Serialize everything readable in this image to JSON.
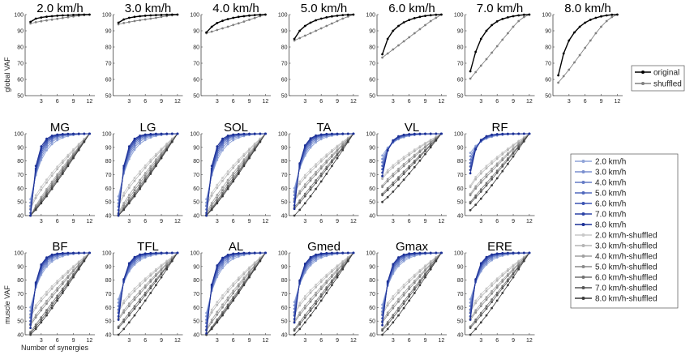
{
  "chart_data": {
    "type": "line",
    "x_ticks": [
      3,
      6,
      9,
      12
    ],
    "x_range": [
      0,
      13
    ],
    "y_range": [
      40,
      100
    ],
    "global_y_ticks": [
      50,
      60,
      70,
      80,
      90,
      100
    ],
    "muscle_y_ticks": [
      40,
      50,
      60,
      70,
      80,
      90,
      100
    ],
    "x": [
      1,
      2,
      3,
      4,
      5,
      6,
      7,
      8,
      9,
      10,
      11,
      12
    ],
    "global_ylabel": "global VAF",
    "muscle_ylabel": "muscle VAF",
    "xlabel": "Number of synergies",
    "global_legend": [
      {
        "label": "original",
        "color": "#000000"
      },
      {
        "label": "shuffled",
        "color": "#808080"
      }
    ],
    "speed_legend": [
      {
        "label": "2.0 km/h",
        "color": "#8fa3d8"
      },
      {
        "label": "3.0 km/h",
        "color": "#7a8fcf"
      },
      {
        "label": "4.0 km/h",
        "color": "#657bc6"
      },
      {
        "label": "5.0 km/h",
        "color": "#5068bd"
      },
      {
        "label": "6.0 km/h",
        "color": "#3c54b3"
      },
      {
        "label": "7.0 km/h",
        "color": "#2b42a6"
      },
      {
        "label": "8.0 km/h",
        "color": "#1c3096"
      },
      {
        "label": "2.0 km/h-shuffled",
        "color": "#c8c8c8"
      },
      {
        "label": "3.0 km/h-shuffled",
        "color": "#b5b5b5"
      },
      {
        "label": "4.0 km/h-shuffled",
        "color": "#a0a0a0"
      },
      {
        "label": "5.0 km/h-shuffled",
        "color": "#8a8a8a"
      },
      {
        "label": "6.0 km/h-shuffled",
        "color": "#707070"
      },
      {
        "label": "7.0 km/h-shuffled",
        "color": "#555555"
      },
      {
        "label": "8.0 km/h-shuffled",
        "color": "#3a3a3a"
      }
    ],
    "global_panels": [
      {
        "title": "2.0 km/h",
        "original": [
          95.5,
          97.5,
          98.2,
          98.7,
          99.0,
          99.3,
          99.5,
          99.6,
          99.8,
          99.9,
          100,
          100
        ],
        "shuffled": [
          94.5,
          95.3,
          95.9,
          96.4,
          96.9,
          97.4,
          97.9,
          98.4,
          98.9,
          99.3,
          99.7,
          100
        ]
      },
      {
        "title": "3.0 km/h",
        "original": [
          95.0,
          97.0,
          98.0,
          98.6,
          99.0,
          99.3,
          99.5,
          99.7,
          99.8,
          99.9,
          100,
          100
        ],
        "shuffled": [
          94.0,
          94.8,
          95.4,
          96.0,
          96.5,
          97.0,
          97.5,
          98.0,
          98.6,
          99.1,
          99.6,
          100
        ]
      },
      {
        "title": "4.0 km/h",
        "original": [
          89.0,
          92.5,
          94.8,
          96.2,
          97.2,
          98.0,
          98.6,
          99.0,
          99.4,
          99.7,
          99.9,
          100
        ],
        "shuffled": [
          88.5,
          89.5,
          90.5,
          91.5,
          92.5,
          93.6,
          94.6,
          95.7,
          96.8,
          97.9,
          99.0,
          100
        ]
      },
      {
        "title": "5.0 km/h",
        "original": [
          85.0,
          90.0,
          93.0,
          95.0,
          96.5,
          97.5,
          98.3,
          98.9,
          99.3,
          99.7,
          99.9,
          100
        ],
        "shuffled": [
          84.0,
          85.5,
          87.0,
          88.5,
          90.0,
          91.5,
          93.0,
          94.5,
          96.0,
          97.5,
          98.8,
          100
        ]
      },
      {
        "title": "6.0 km/h",
        "original": [
          75.5,
          85.0,
          90.0,
          93.0,
          95.2,
          96.7,
          97.8,
          98.6,
          99.2,
          99.6,
          99.9,
          100
        ],
        "shuffled": [
          73.5,
          76.0,
          78.5,
          81.0,
          83.5,
          86.0,
          88.5,
          91.0,
          93.5,
          96.0,
          98.0,
          100
        ]
      },
      {
        "title": "7.0 km/h",
        "original": [
          65.0,
          77.0,
          85.0,
          90.0,
          93.5,
          95.8,
          97.3,
          98.3,
          99.0,
          99.5,
          99.9,
          100
        ],
        "shuffled": [
          60.5,
          64.5,
          68.5,
          72.5,
          76.5,
          80.5,
          84.5,
          88.5,
          92.5,
          96.0,
          98.5,
          100
        ]
      },
      {
        "title": "8.0 km/h",
        "original": [
          62.5,
          76.0,
          84.0,
          89.0,
          92.5,
          95.0,
          96.8,
          98.0,
          98.9,
          99.5,
          99.9,
          100
        ],
        "shuffled": [
          58.0,
          62.0,
          66.0,
          70.5,
          75.0,
          79.5,
          84.0,
          88.5,
          92.5,
          96.0,
          98.5,
          100
        ]
      }
    ],
    "muscle_panels": [
      {
        "title": "MG",
        "base_orig": 52,
        "base_shuf": 46
      },
      {
        "title": "LG",
        "base_orig": 54,
        "base_shuf": 48
      },
      {
        "title": "SOL",
        "base_orig": 52,
        "base_shuf": 48
      },
      {
        "title": "TA",
        "base_orig": 60,
        "base_shuf": 58
      },
      {
        "title": "VL",
        "base_orig": 84,
        "base_shuf": 68
      },
      {
        "title": "RF",
        "base_orig": 86,
        "base_shuf": 62
      },
      {
        "title": "BF",
        "base_orig": 60,
        "base_shuf": 54
      },
      {
        "title": "TFL",
        "base_orig": 66,
        "base_shuf": 58
      },
      {
        "title": "AL",
        "base_orig": 56,
        "base_shuf": 50
      },
      {
        "title": "Gmed",
        "base_orig": 64,
        "base_shuf": 56
      },
      {
        "title": "Gmax",
        "base_orig": 62,
        "base_shuf": 56
      },
      {
        "title": "ERE",
        "base_orig": 66,
        "base_shuf": 58
      }
    ]
  }
}
